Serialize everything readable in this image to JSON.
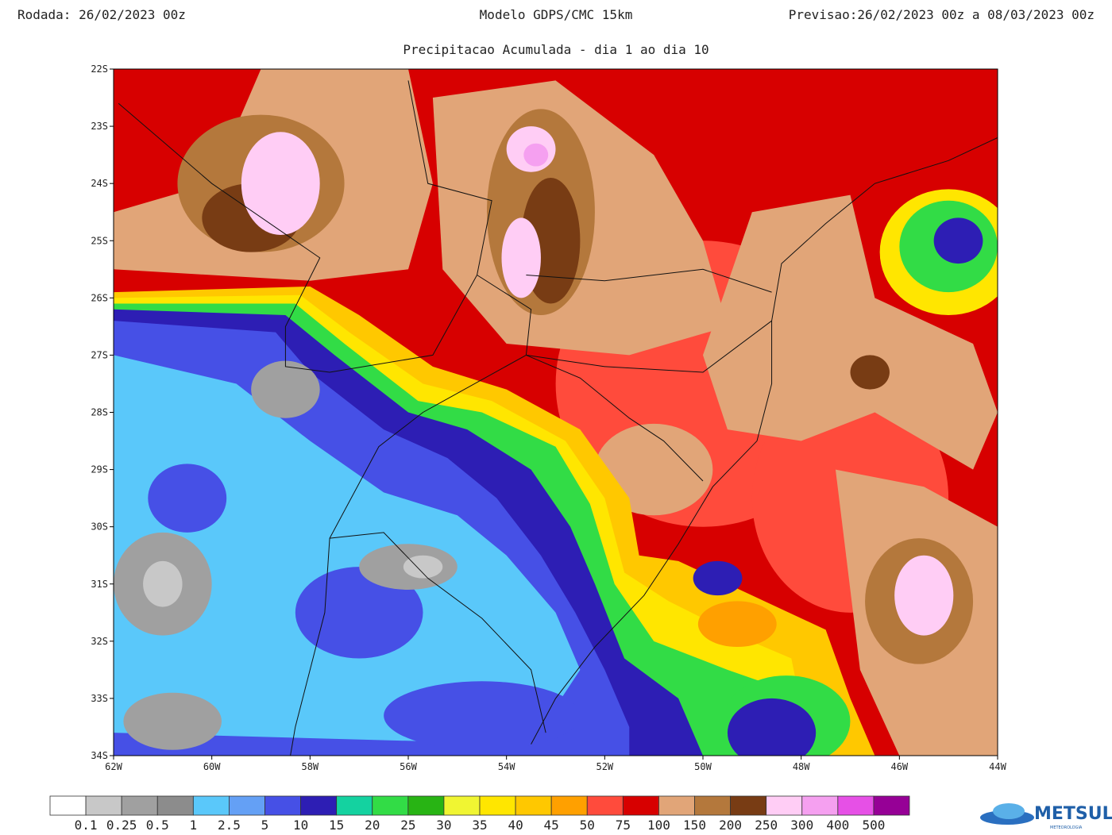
{
  "header": {
    "run": "Rodada: 26/02/2023 00z",
    "model": "Modelo GDPS/CMC 15km",
    "forecast": "Previsao:26/02/2023 00z a 08/03/2023 00z",
    "subtitle": "Precipitacao Acumulada - dia 1 ao dia 10"
  },
  "map": {
    "lat_labels": [
      "22S",
      "23S",
      "24S",
      "25S",
      "26S",
      "27S",
      "28S",
      "29S",
      "30S",
      "31S",
      "32S",
      "33S",
      "34S"
    ],
    "lon_labels": [
      "62W",
      "60W",
      "58W",
      "56W",
      "54W",
      "52W",
      "50W",
      "48W",
      "46W",
      "44W"
    ]
  },
  "colorbar": {
    "colors": [
      "#ffffff",
      "#c8c8c8",
      "#a0a0a0",
      "#8c8c8c",
      "#5ac8fa",
      "#64a0f5",
      "#4650e6",
      "#2d1eb4",
      "#14d2a0",
      "#32dc46",
      "#28b414",
      "#f0f532",
      "#ffe600",
      "#ffc800",
      "#ffa000",
      "#ff4b3c",
      "#d70000",
      "#e1a578",
      "#b4783c",
      "#783c14",
      "#ffcdf5",
      "#f5a0f0",
      "#e650e6",
      "#960096"
    ],
    "labels": [
      "0.1",
      "0.25",
      "0.5",
      "1",
      "2.5",
      "5",
      "10",
      "15",
      "20",
      "25",
      "30",
      "35",
      "40",
      "45",
      "50",
      "75",
      "100",
      "150",
      "200",
      "250",
      "300",
      "400",
      "500"
    ]
  },
  "logo": {
    "name": "METSUL",
    "tagline": "METEOROLOGIA"
  }
}
